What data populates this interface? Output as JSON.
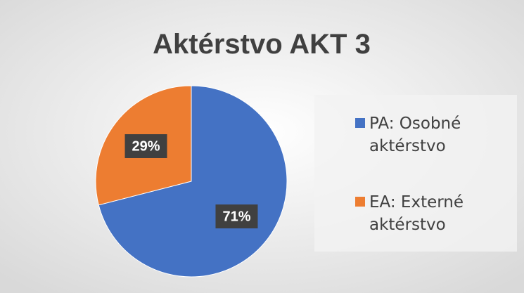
{
  "chart_data": {
    "type": "pie",
    "title": "Aktérstvo AKT 3",
    "categories": [
      "PA: Osobné aktérstvo",
      "EA: Externé aktérstvo"
    ],
    "values": [
      71,
      29
    ],
    "value_labels": [
      "71%",
      "29%"
    ],
    "colors": [
      "#4472c4",
      "#ed7d31"
    ],
    "legend": "right"
  }
}
